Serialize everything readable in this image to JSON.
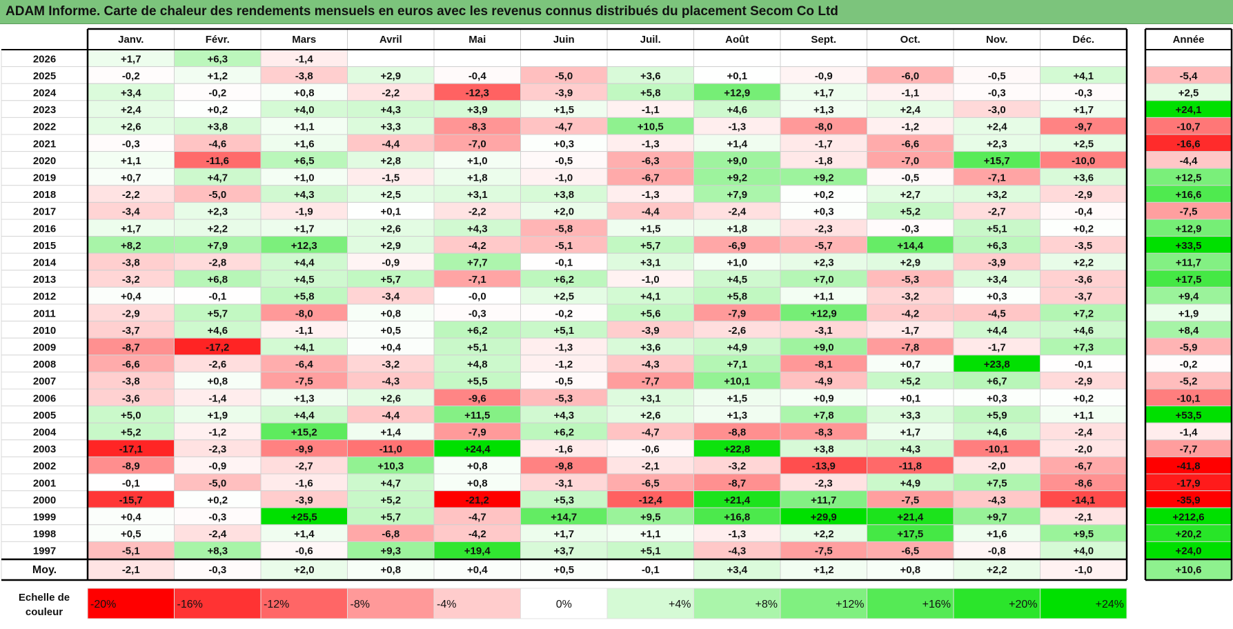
{
  "title": "ADAM Informe. Carte de chaleur des rendements mensuels en euros avec les revenus connus distribués du placement Secom Co Ltd",
  "chart_data": {
    "type": "heatmap",
    "columns": [
      "Janv.",
      "Févr.",
      "Mars",
      "Avril",
      "Mai",
      "Juin",
      "Juil.",
      "Août",
      "Sept.",
      "Oct.",
      "Nov.",
      "Déc."
    ],
    "year_header": "Année",
    "rows": [
      {
        "year": "2026",
        "values": [
          "+1,7",
          "+6,3",
          "-1,4",
          "",
          "",
          "",
          "",
          "",
          "",
          "",
          "",
          ""
        ],
        "annual": ""
      },
      {
        "year": "2025",
        "values": [
          "-0,2",
          "+1,2",
          "-3,8",
          "+2,9",
          "-0,4",
          "-5,0",
          "+3,6",
          "+0,1",
          "-0,9",
          "-6,0",
          "-0,5",
          "+4,1"
        ],
        "annual": "-5,4"
      },
      {
        "year": "2024",
        "values": [
          "+3,4",
          "-0,2",
          "+0,8",
          "-2,2",
          "-12,3",
          "-3,9",
          "+5,8",
          "+12,9",
          "+1,7",
          "-1,1",
          "-0,3",
          "-0,3"
        ],
        "annual": "+2,5"
      },
      {
        "year": "2023",
        "values": [
          "+2,4",
          "+0,2",
          "+4,0",
          "+4,3",
          "+3,9",
          "+1,5",
          "-1,1",
          "+4,6",
          "+1,3",
          "+2,4",
          "-3,0",
          "+1,7"
        ],
        "annual": "+24,1"
      },
      {
        "year": "2022",
        "values": [
          "+2,6",
          "+3,8",
          "+1,1",
          "+3,3",
          "-8,3",
          "-4,7",
          "+10,5",
          "-1,3",
          "-8,0",
          "-1,2",
          "+2,4",
          "-9,7"
        ],
        "annual": "-10,7"
      },
      {
        "year": "2021",
        "values": [
          "-0,3",
          "-4,6",
          "+1,6",
          "-4,4",
          "-7,0",
          "+0,3",
          "-1,3",
          "+1,4",
          "-1,7",
          "-6,6",
          "+2,3",
          "+2,5"
        ],
        "annual": "-16,6"
      },
      {
        "year": "2020",
        "values": [
          "+1,1",
          "-11,6",
          "+6,5",
          "+2,8",
          "+1,0",
          "-0,5",
          "-6,3",
          "+9,0",
          "-1,8",
          "-7,0",
          "+15,7",
          "-10,0"
        ],
        "annual": "-4,4"
      },
      {
        "year": "2019",
        "values": [
          "+0,7",
          "+4,7",
          "+1,0",
          "-1,5",
          "+1,8",
          "-1,0",
          "-6,7",
          "+9,2",
          "+9,2",
          "-0,5",
          "-7,1",
          "+3,6"
        ],
        "annual": "+12,5"
      },
      {
        "year": "2018",
        "values": [
          "-2,2",
          "-5,0",
          "+4,3",
          "+2,5",
          "+3,1",
          "+3,8",
          "-1,3",
          "+7,9",
          "+0,2",
          "+2,7",
          "+3,2",
          "-2,9"
        ],
        "annual": "+16,6"
      },
      {
        "year": "2017",
        "values": [
          "-3,4",
          "+2,3",
          "-1,9",
          "+0,1",
          "-2,2",
          "+2,0",
          "-4,4",
          "-2,4",
          "+0,3",
          "+5,2",
          "-2,7",
          "-0,4"
        ],
        "annual": "-7,5"
      },
      {
        "year": "2016",
        "values": [
          "+1,7",
          "+2,2",
          "+1,7",
          "+2,6",
          "+4,3",
          "-5,8",
          "+1,5",
          "+1,8",
          "-2,3",
          "-0,3",
          "+5,1",
          "+0,2"
        ],
        "annual": "+12,9"
      },
      {
        "year": "2015",
        "values": [
          "+8,2",
          "+7,9",
          "+12,3",
          "+2,9",
          "-4,2",
          "-5,1",
          "+5,7",
          "-6,9",
          "-5,7",
          "+14,4",
          "+6,3",
          "-3,5"
        ],
        "annual": "+33,5"
      },
      {
        "year": "2014",
        "values": [
          "-3,8",
          "-2,8",
          "+4,4",
          "-0,9",
          "+7,7",
          "-0,1",
          "+3,1",
          "+1,0",
          "+2,3",
          "+2,9",
          "-3,9",
          "+2,2"
        ],
        "annual": "+11,7"
      },
      {
        "year": "2013",
        "values": [
          "-3,2",
          "+6,8",
          "+4,5",
          "+5,7",
          "-7,1",
          "+6,2",
          "-1,0",
          "+4,5",
          "+7,0",
          "-5,3",
          "+3,4",
          "-3,6"
        ],
        "annual": "+17,5"
      },
      {
        "year": "2012",
        "values": [
          "+0,4",
          "-0,1",
          "+5,8",
          "-3,4",
          "-0,0",
          "+2,5",
          "+4,1",
          "+5,8",
          "+1,1",
          "-3,2",
          "+0,3",
          "-3,7"
        ],
        "annual": "+9,4"
      },
      {
        "year": "2011",
        "values": [
          "-2,9",
          "+5,7",
          "-8,0",
          "+0,8",
          "-0,3",
          "-0,2",
          "+5,6",
          "-7,9",
          "+12,9",
          "-4,2",
          "-4,5",
          "+7,2"
        ],
        "annual": "+1,9"
      },
      {
        "year": "2010",
        "values": [
          "-3,7",
          "+4,6",
          "-1,1",
          "+0,5",
          "+6,2",
          "+5,1",
          "-3,9",
          "-2,6",
          "-3,1",
          "-1,7",
          "+4,4",
          "+4,6"
        ],
        "annual": "+8,4"
      },
      {
        "year": "2009",
        "values": [
          "-8,7",
          "-17,2",
          "+4,1",
          "+0,4",
          "+5,1",
          "-1,3",
          "+3,6",
          "+4,9",
          "+9,0",
          "-7,8",
          "-1,7",
          "+7,3"
        ],
        "annual": "-5,9"
      },
      {
        "year": "2008",
        "values": [
          "-6,6",
          "-2,6",
          "-6,4",
          "-3,2",
          "+4,8",
          "-1,2",
          "-4,3",
          "+7,1",
          "-8,1",
          "+0,7",
          "+23,8",
          "-0,1"
        ],
        "annual": "-0,2"
      },
      {
        "year": "2007",
        "values": [
          "-3,8",
          "+0,8",
          "-7,5",
          "-4,3",
          "+5,5",
          "-0,5",
          "-7,7",
          "+10,1",
          "-4,9",
          "+5,2",
          "+6,7",
          "-2,9"
        ],
        "annual": "-5,2"
      },
      {
        "year": "2006",
        "values": [
          "-3,6",
          "-1,4",
          "+1,3",
          "+2,6",
          "-9,6",
          "-5,3",
          "+3,1",
          "+1,5",
          "+0,9",
          "+0,1",
          "+0,3",
          "+0,2"
        ],
        "annual": "-10,1"
      },
      {
        "year": "2005",
        "values": [
          "+5,0",
          "+1,9",
          "+4,4",
          "-4,4",
          "+11,5",
          "+4,3",
          "+2,6",
          "+1,3",
          "+7,8",
          "+3,3",
          "+5,9",
          "+1,1"
        ],
        "annual": "+53,5"
      },
      {
        "year": "2004",
        "values": [
          "+5,2",
          "-1,2",
          "+15,2",
          "+1,4",
          "-7,9",
          "+6,2",
          "-4,7",
          "-8,8",
          "-8,3",
          "+1,7",
          "+4,6",
          "-2,4"
        ],
        "annual": "-1,4"
      },
      {
        "year": "2003",
        "values": [
          "-17,1",
          "-2,3",
          "-9,9",
          "-11,0",
          "+24,4",
          "-1,6",
          "-0,6",
          "+22,8",
          "+3,8",
          "+4,3",
          "-10,1",
          "-2,0"
        ],
        "annual": "-7,7"
      },
      {
        "year": "2002",
        "values": [
          "-8,9",
          "-0,9",
          "-2,7",
          "+10,3",
          "+0,8",
          "-9,8",
          "-2,1",
          "-3,2",
          "-13,9",
          "-11,8",
          "-2,0",
          "-6,7"
        ],
        "annual": "-41,8"
      },
      {
        "year": "2001",
        "values": [
          "-0,1",
          "-5,0",
          "-1,6",
          "+4,7",
          "+0,8",
          "-3,1",
          "-6,5",
          "-8,7",
          "-2,3",
          "+4,9",
          "+7,5",
          "-8,6"
        ],
        "annual": "-17,9"
      },
      {
        "year": "2000",
        "values": [
          "-15,7",
          "+0,2",
          "-3,9",
          "+5,2",
          "-21,2",
          "+5,3",
          "-12,4",
          "+21,4",
          "+11,7",
          "-7,5",
          "-4,3",
          "-14,1"
        ],
        "annual": "-35,9"
      },
      {
        "year": "1999",
        "values": [
          "+0,4",
          "-0,3",
          "+25,5",
          "+5,7",
          "-4,7",
          "+14,7",
          "+9,5",
          "+16,8",
          "+29,9",
          "+21,4",
          "+9,7",
          "-2,1"
        ],
        "annual": "+212,6"
      },
      {
        "year": "1998",
        "values": [
          "+0,5",
          "-2,4",
          "+1,4",
          "-6,8",
          "-4,2",
          "+1,7",
          "+1,1",
          "-1,3",
          "+2,2",
          "+17,5",
          "+1,6",
          "+9,5"
        ],
        "annual": "+20,2"
      },
      {
        "year": "1997",
        "values": [
          "-5,1",
          "+8,3",
          "-0,6",
          "+9,3",
          "+19,4",
          "+3,7",
          "+5,1",
          "-4,3",
          "-7,5",
          "-6,5",
          "-0,8",
          "+4,0"
        ],
        "annual": "+24,0"
      }
    ],
    "average": {
      "label": "Moy.",
      "values": [
        "-2,1",
        "-0,3",
        "+2,0",
        "+0,8",
        "+0,4",
        "+0,5",
        "-0,1",
        "+3,4",
        "+1,2",
        "+0,8",
        "+2,2",
        "-1,0"
      ],
      "annual": "+10,6"
    },
    "scale": {
      "label_line1": "Echelle de",
      "label_line2": "couleur",
      "steps": [
        {
          "label": "-20%",
          "value": -20
        },
        {
          "label": "-16%",
          "value": -16
        },
        {
          "label": "-12%",
          "value": -12
        },
        {
          "label": "-8%",
          "value": -8
        },
        {
          "label": "-4%",
          "value": -4
        },
        {
          "label": "0%",
          "value": 0
        },
        {
          "label": "+4%",
          "value": 4
        },
        {
          "label": "+8%",
          "value": 8
        },
        {
          "label": "+12%",
          "value": 12
        },
        {
          "label": "+16%",
          "value": 16
        },
        {
          "label": "+20%",
          "value": 20
        },
        {
          "label": "+24%",
          "value": 24
        }
      ]
    },
    "colors": {
      "negative_max": "#ff0000",
      "neutral": "#ffffff",
      "positive_max": "#00e000",
      "title_bar": "#7cc47c"
    }
  }
}
